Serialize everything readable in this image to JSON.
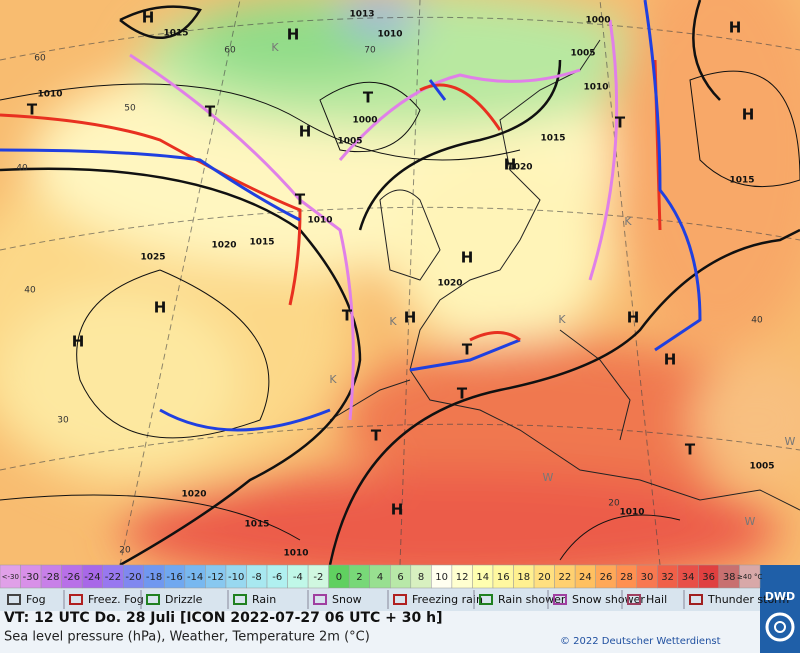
{
  "map": {
    "centers": [
      "H",
      "H",
      "H",
      "H",
      "H",
      "H",
      "H",
      "H",
      "H",
      "H",
      "H",
      "H",
      "H",
      "T",
      "T",
      "T",
      "T",
      "T",
      "T",
      "T",
      "T",
      "T",
      "T"
    ],
    "isobar_labels": [
      "1015",
      "1010",
      "1005",
      "1000",
      "1010",
      "1015",
      "1020",
      "1025",
      "1020",
      "1020",
      "1015",
      "1005",
      "1010",
      "1000",
      "1015",
      "1020",
      "1015",
      "1010",
      "1010",
      "1005",
      "1013",
      "1010"
    ],
    "temp_labels": [
      "60",
      "50",
      "40",
      "40",
      "30",
      "20",
      "60",
      "70",
      "40",
      "20"
    ],
    "markers": [
      "K",
      "K",
      "K",
      "K",
      "K",
      "W",
      "W",
      "W"
    ]
  },
  "color_scale": [
    {
      "label": "<-30",
      "color": "#e0a0e8"
    },
    {
      "label": "-30",
      "color": "#d890e8"
    },
    {
      "label": "-28",
      "color": "#c880e8"
    },
    {
      "label": "-26",
      "color": "#b870e8"
    },
    {
      "label": "-24",
      "color": "#a868e8"
    },
    {
      "label": "-22",
      "color": "#9878f0"
    },
    {
      "label": "-20",
      "color": "#8088f0"
    },
    {
      "label": "-18",
      "color": "#7098f0"
    },
    {
      "label": "-16",
      "color": "#70a8f0"
    },
    {
      "label": "-14",
      "color": "#78b8f0"
    },
    {
      "label": "-12",
      "color": "#88c8f0"
    },
    {
      "label": "-10",
      "color": "#98d8f0"
    },
    {
      "label": "-8",
      "color": "#a8e8f0"
    },
    {
      "label": "-6",
      "color": "#b0f0f0"
    },
    {
      "label": "-4",
      "color": "#c0f8e8"
    },
    {
      "label": "-2",
      "color": "#d0f8e0"
    },
    {
      "label": "0",
      "color": "#60d060"
    },
    {
      "label": "2",
      "color": "#78d878"
    },
    {
      "label": "4",
      "color": "#98e090"
    },
    {
      "label": "6",
      "color": "#b8e8a8"
    },
    {
      "label": "8",
      "color": "#d8f0c0"
    },
    {
      "label": "10",
      "color": "#fffff0"
    },
    {
      "label": "12",
      "color": "#ffffd0"
    },
    {
      "label": "14",
      "color": "#ffffb0"
    },
    {
      "label": "16",
      "color": "#fff8a0"
    },
    {
      "label": "18",
      "color": "#fff090"
    },
    {
      "label": "20",
      "color": "#ffe080"
    },
    {
      "label": "22",
      "color": "#ffd070"
    },
    {
      "label": "24",
      "color": "#ffc060"
    },
    {
      "label": "26",
      "color": "#ffa858"
    },
    {
      "label": "28",
      "color": "#ff9050"
    },
    {
      "label": "30",
      "color": "#f87850"
    },
    {
      "label": "32",
      "color": "#f06048"
    },
    {
      "label": "34",
      "color": "#e85048"
    },
    {
      "label": "36",
      "color": "#e04040"
    },
    {
      "label": "38",
      "color": "#c87070"
    },
    {
      "label": "≥40 °C",
      "color": "#d8a8a8"
    }
  ],
  "legend": [
    "Fog",
    "Freez. Fog",
    "Drizzle",
    "Rain",
    "Snow",
    "Freezing rain",
    "Rain shower",
    "Snow shower",
    "Hail",
    "Thunder storm"
  ],
  "footer": {
    "valid_time": "VT: 12 UTC Do.  28 Juli [ICON 2022-07-27  06 UTC + 30 h]",
    "subtitle": "Sea level pressure (hPa), Weather, Temperature 2m (°C)",
    "copyright": "© 2022 Deutscher Wetterdienst",
    "logo": "DWD"
  }
}
